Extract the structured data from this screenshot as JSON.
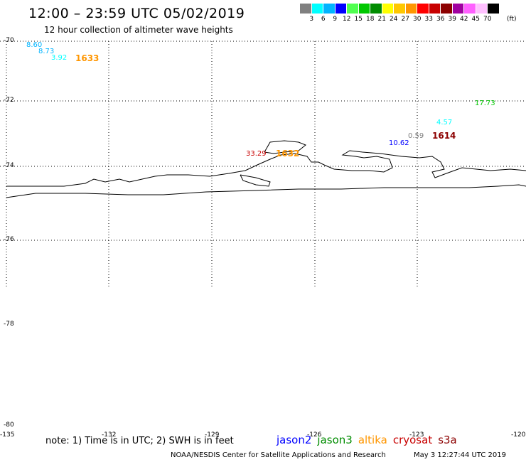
{
  "header": {
    "title": "12:00 – 23:59 UTC 05/02/2019",
    "subtitle": "12 hour collection of altimeter wave heights"
  },
  "legend": {
    "colors": [
      "#808080",
      "#00ffff",
      "#00b4ff",
      "#0000ff",
      "#50ff50",
      "#00c800",
      "#008c00",
      "#ffff00",
      "#ffc800",
      "#ff9600",
      "#ff0000",
      "#c80000",
      "#8c0000",
      "#a000a0",
      "#ff60ff",
      "#ffc0ff",
      "#000000"
    ],
    "labels": [
      "3",
      "6",
      "9",
      "12",
      "15",
      "18",
      "21",
      "24",
      "27",
      "30",
      "33",
      "36",
      "39",
      "42",
      "45",
      "70"
    ],
    "unit": "(ft)"
  },
  "latitude_labels": [
    "-70",
    "-72",
    "-74",
    "-76",
    "-78",
    "-80"
  ],
  "longitude_labels": [
    "-135",
    "-132",
    "-129",
    "-126",
    "-123",
    "-120"
  ],
  "swh_readings": [
    {
      "value": "8.60",
      "color": "#00b4ff"
    },
    {
      "value": "8.73",
      "color": "#00b4ff"
    },
    {
      "value": "3.92",
      "color": "#00ffff"
    },
    {
      "value": "17.73",
      "color": "#00c800"
    },
    {
      "value": "4.57",
      "color": "#00ffff"
    },
    {
      "value": "0.59",
      "color": "#808080"
    },
    {
      "value": "10.62",
      "color": "#0000ff"
    },
    {
      "value": "33.29",
      "color": "#c80000"
    }
  ],
  "pass_labels": [
    {
      "value": "1633",
      "color": "#ff9600"
    },
    {
      "value": "1614",
      "color": "#8c0000"
    },
    {
      "value": "1632",
      "color": "#ff9600"
    }
  ],
  "footer": {
    "note": "note: 1) Time is in UTC; 2) SWH is in feet",
    "satellites": [
      {
        "name": "jason2",
        "color": "#0000ff"
      },
      {
        "name": "jason3",
        "color": "#008c00"
      },
      {
        "name": "altika",
        "color": "#ff9600"
      },
      {
        "name": "cryosat",
        "color": "#c80000"
      },
      {
        "name": "s3a",
        "color": "#8c0000"
      }
    ],
    "credit": "NOAA/NESDIS Center for Satellite Applications and Research",
    "timestamp": "May  3 12:27:44 UTC 2019"
  }
}
